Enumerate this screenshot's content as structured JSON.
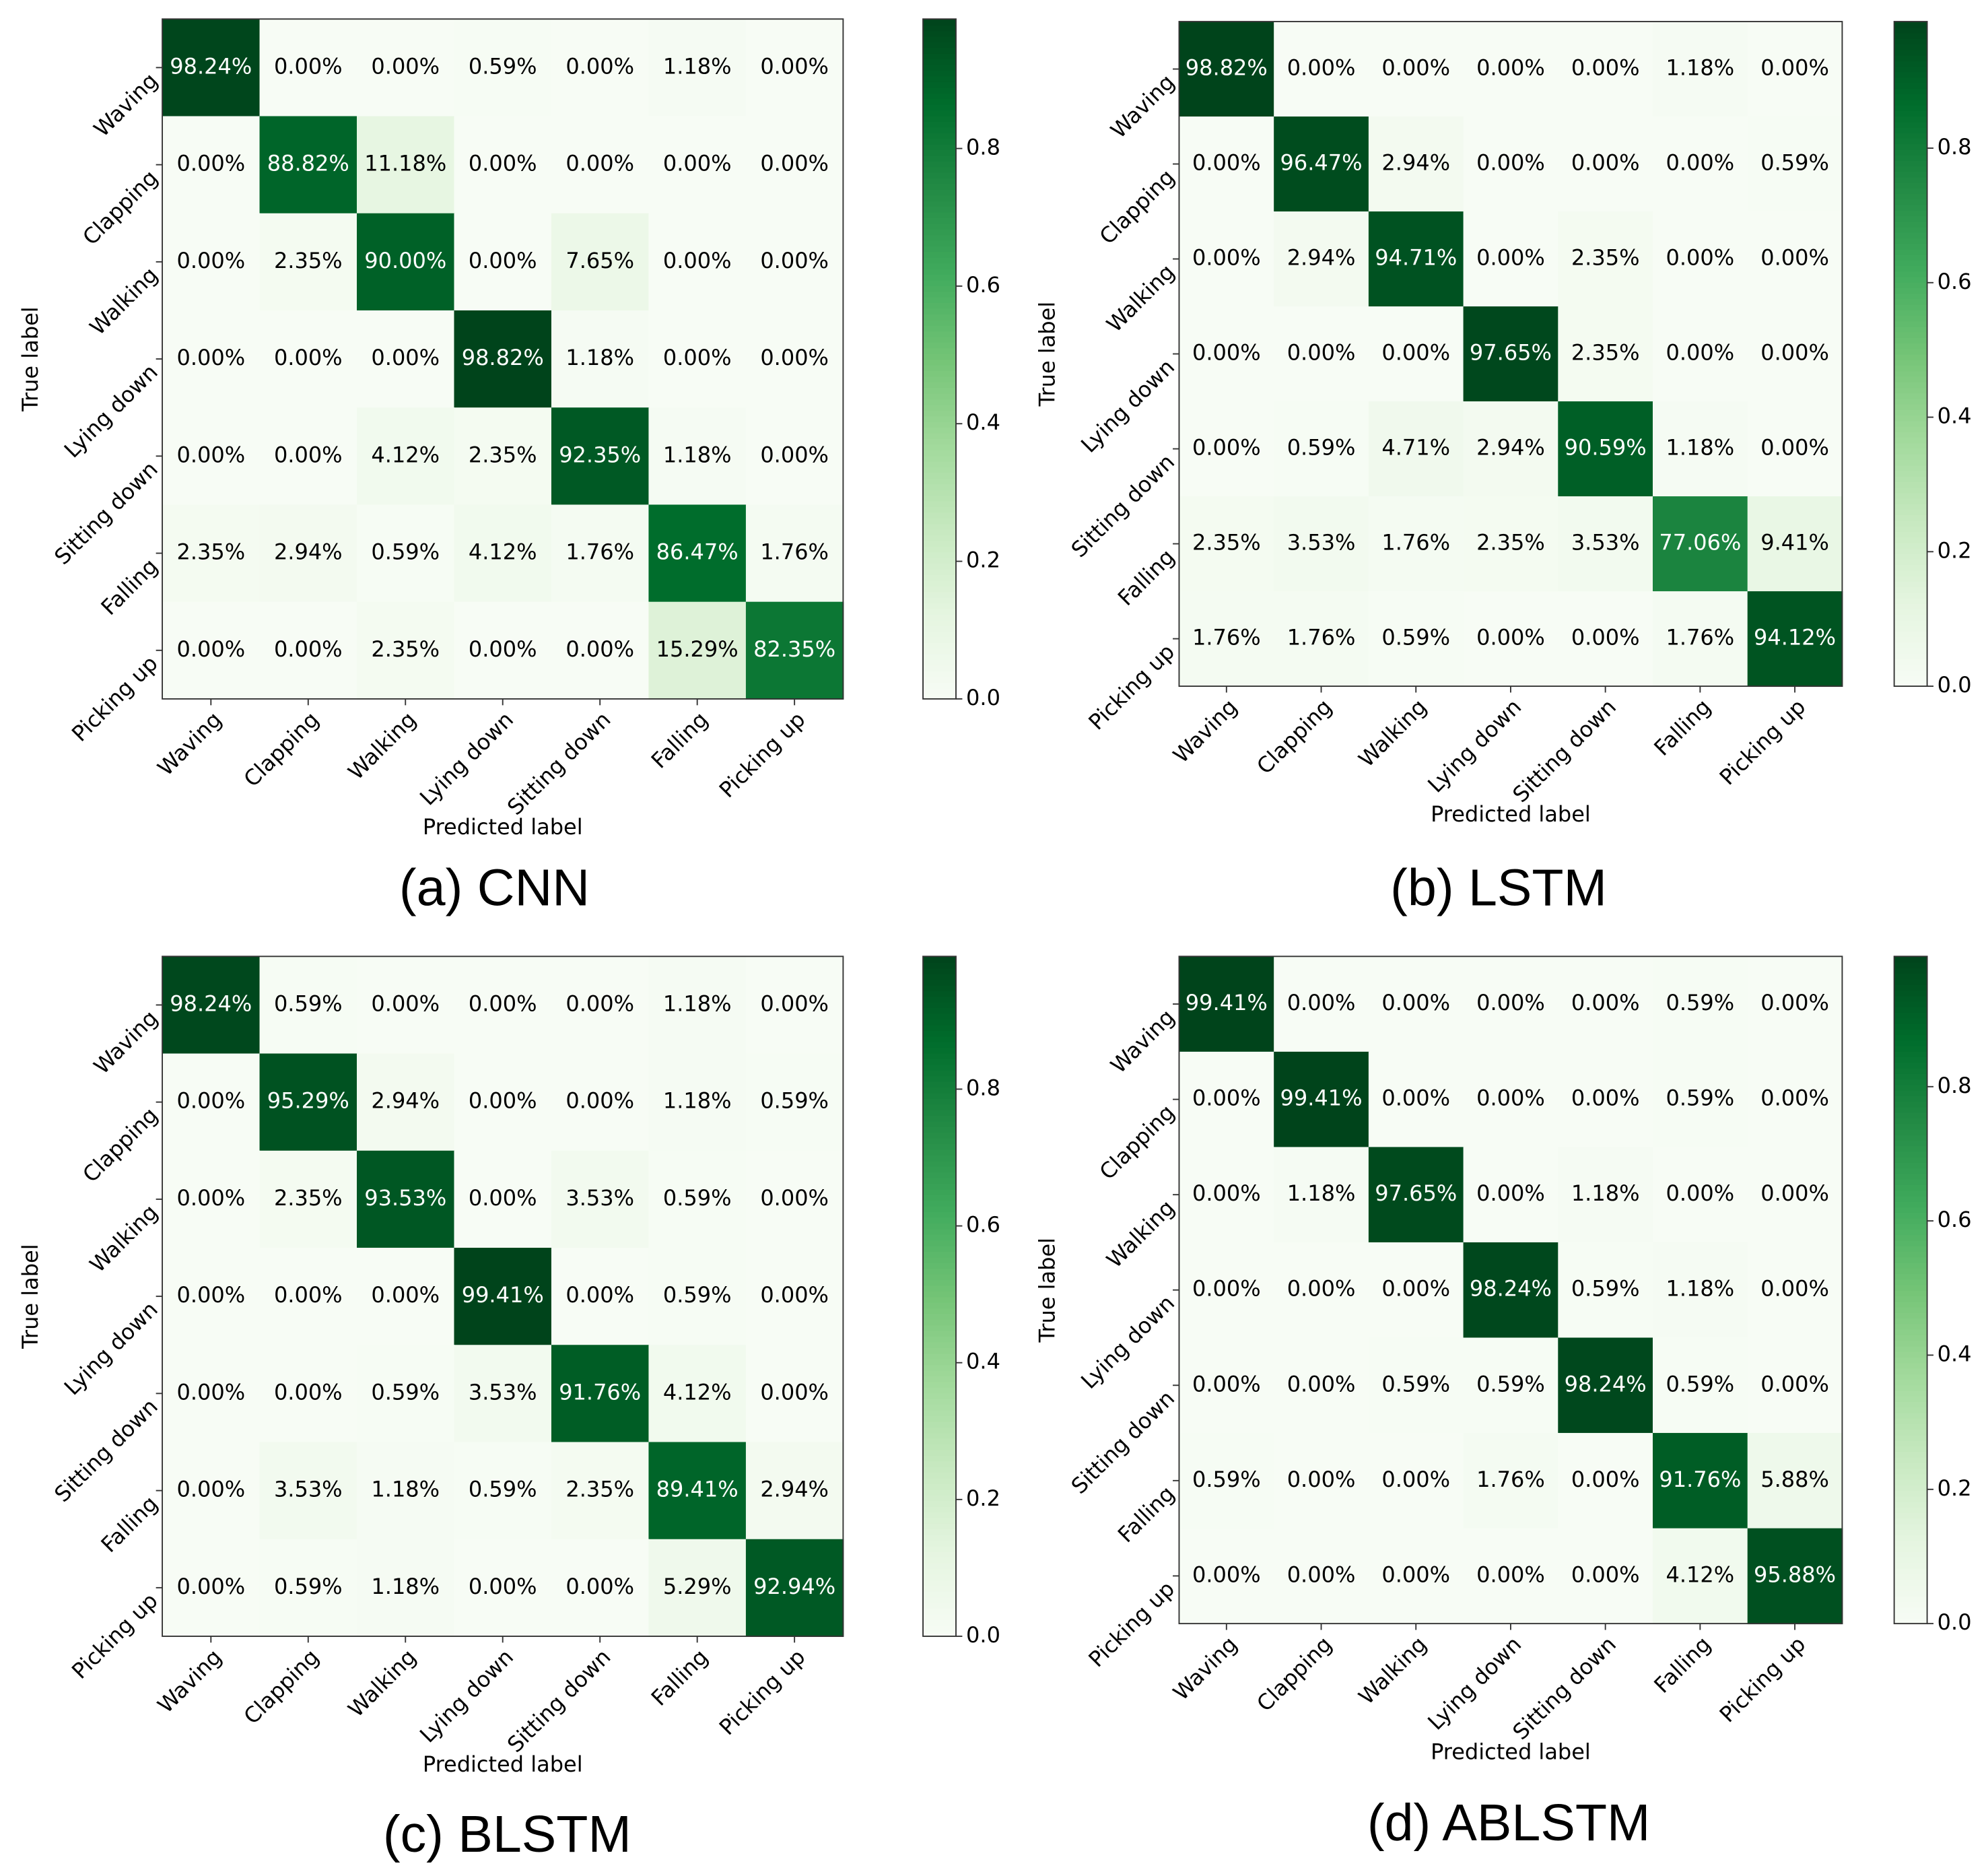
{
  "chart_data": [
    {
      "type": "heatmap",
      "title": "(a) CNN",
      "xlabel": "Predicted label",
      "ylabel": "True label",
      "xcategories": [
        "Waving",
        "Clapping",
        "Walking",
        "Lying down",
        "Sitting down",
        "Falling",
        "Picking up"
      ],
      "ycategories": [
        "Waving",
        "Clapping",
        "Walking",
        "Lying down",
        "Sitting down",
        "Falling",
        "Picking up"
      ],
      "values": [
        [
          0.9824,
          0,
          0,
          0.0059,
          0,
          0.0118,
          0
        ],
        [
          0,
          0.8882,
          0.1118,
          0,
          0,
          0,
          0
        ],
        [
          0,
          0.0235,
          0.9,
          0,
          0.0765,
          0,
          0
        ],
        [
          0,
          0,
          0,
          0.9882,
          0.0118,
          0,
          0
        ],
        [
          0,
          0,
          0.0412,
          0.0235,
          0.9235,
          0.0118,
          0
        ],
        [
          0.0235,
          0.0294,
          0.0059,
          0.0412,
          0.0176,
          0.8647,
          0.0176
        ],
        [
          0,
          0,
          0.0235,
          0,
          0,
          0.1529,
          0.8235
        ]
      ],
      "value_labels": [
        [
          "98.24%",
          "0.00%",
          "0.00%",
          "0.59%",
          "0.00%",
          "1.18%",
          "0.00%"
        ],
        [
          "0.00%",
          "88.82%",
          "11.18%",
          "0.00%",
          "0.00%",
          "0.00%",
          "0.00%"
        ],
        [
          "0.00%",
          "2.35%",
          "90.00%",
          "0.00%",
          "7.65%",
          "0.00%",
          "0.00%"
        ],
        [
          "0.00%",
          "0.00%",
          "0.00%",
          "98.82%",
          "1.18%",
          "0.00%",
          "0.00%"
        ],
        [
          "0.00%",
          "0.00%",
          "4.12%",
          "2.35%",
          "92.35%",
          "1.18%",
          "0.00%"
        ],
        [
          "2.35%",
          "2.94%",
          "0.59%",
          "4.12%",
          "1.76%",
          "86.47%",
          "1.76%"
        ],
        [
          "0.00%",
          "0.00%",
          "2.35%",
          "0.00%",
          "0.00%",
          "15.29%",
          "82.35%"
        ]
      ],
      "clim": [
        0,
        0.9882
      ],
      "cticks": [
        {
          "value": 0,
          "label": "0.0"
        },
        0.2,
        0.4,
        0.6,
        0.8
      ],
      "cmap": [
        "#f7fcf5",
        "#e5f5e0",
        "#c7e9c0",
        "#a1d99b",
        "#74c476",
        "#41ab5d",
        "#238b45",
        "#006d2c",
        "#00441b"
      ]
    },
    {
      "type": "heatmap",
      "title": "(b) LSTM",
      "xlabel": "Predicted label",
      "ylabel": "True label",
      "xcategories": [
        "Waving",
        "Clapping",
        "Walking",
        "Lying down",
        "Sitting down",
        "Falling",
        "Picking up"
      ],
      "ycategories": [
        "Waving",
        "Clapping",
        "Walking",
        "Lying down",
        "Sitting down",
        "Falling",
        "Picking up"
      ],
      "values": [
        [
          0.9882,
          0,
          0,
          0,
          0,
          0.0118,
          0
        ],
        [
          0,
          0.9647,
          0.0294,
          0,
          0,
          0,
          0.0059
        ],
        [
          0,
          0.0294,
          0.9471,
          0,
          0.0235,
          0,
          0
        ],
        [
          0,
          0,
          0,
          0.9765,
          0.0235,
          0,
          0
        ],
        [
          0,
          0.0059,
          0.0471,
          0.0294,
          0.9059,
          0.0118,
          0
        ],
        [
          0.0235,
          0.0353,
          0.0176,
          0.0235,
          0.0353,
          0.7706,
          0.0941
        ],
        [
          0.0176,
          0.0176,
          0.0059,
          0,
          0,
          0.0176,
          0.9412
        ]
      ],
      "value_labels": [
        [
          "98.82%",
          "0.00%",
          "0.00%",
          "0.00%",
          "0.00%",
          "1.18%",
          "0.00%"
        ],
        [
          "0.00%",
          "96.47%",
          "2.94%",
          "0.00%",
          "0.00%",
          "0.00%",
          "0.59%"
        ],
        [
          "0.00%",
          "2.94%",
          "94.71%",
          "0.00%",
          "2.35%",
          "0.00%",
          "0.00%"
        ],
        [
          "0.00%",
          "0.00%",
          "0.00%",
          "97.65%",
          "2.35%",
          "0.00%",
          "0.00%"
        ],
        [
          "0.00%",
          "0.59%",
          "4.71%",
          "2.94%",
          "90.59%",
          "1.18%",
          "0.00%"
        ],
        [
          "2.35%",
          "3.53%",
          "1.76%",
          "2.35%",
          "3.53%",
          "77.06%",
          "9.41%"
        ],
        [
          "1.76%",
          "1.76%",
          "0.59%",
          "0.00%",
          "0.00%",
          "1.76%",
          "94.12%"
        ]
      ],
      "clim": [
        0,
        0.9882
      ],
      "cticks": [
        {
          "value": 0,
          "label": "0.0"
        },
        0.2,
        0.4,
        0.6,
        0.8
      ],
      "cmap": [
        "#f7fcf5",
        "#e5f5e0",
        "#c7e9c0",
        "#a1d99b",
        "#74c476",
        "#41ab5d",
        "#238b45",
        "#006d2c",
        "#00441b"
      ]
    },
    {
      "type": "heatmap",
      "title": "(c) BLSTM",
      "xlabel": "Predicted label",
      "ylabel": "True label",
      "xcategories": [
        "Waving",
        "Clapping",
        "Walking",
        "Lying down",
        "Sitting down",
        "Falling",
        "Picking up"
      ],
      "ycategories": [
        "Waving",
        "Clapping",
        "Walking",
        "Lying down",
        "Sitting down",
        "Falling",
        "Picking up"
      ],
      "values": [
        [
          0.9824,
          0.0059,
          0,
          0,
          0,
          0.0118,
          0
        ],
        [
          0,
          0.9529,
          0.0294,
          0,
          0,
          0.0118,
          0.0059
        ],
        [
          0,
          0.0235,
          0.9353,
          0,
          0.0353,
          0.0059,
          0
        ],
        [
          0,
          0,
          0,
          0.9941,
          0,
          0.0059,
          0
        ],
        [
          0,
          0,
          0.0059,
          0.0353,
          0.9176,
          0.0412,
          0
        ],
        [
          0,
          0.0353,
          0.0118,
          0.0059,
          0.0235,
          0.8941,
          0.0294
        ],
        [
          0,
          0.0059,
          0.0118,
          0,
          0,
          0.0529,
          0.9294
        ]
      ],
      "value_labels": [
        [
          "98.24%",
          "0.59%",
          "0.00%",
          "0.00%",
          "0.00%",
          "1.18%",
          "0.00%"
        ],
        [
          "0.00%",
          "95.29%",
          "2.94%",
          "0.00%",
          "0.00%",
          "1.18%",
          "0.59%"
        ],
        [
          "0.00%",
          "2.35%",
          "93.53%",
          "0.00%",
          "3.53%",
          "0.59%",
          "0.00%"
        ],
        [
          "0.00%",
          "0.00%",
          "0.00%",
          "99.41%",
          "0.00%",
          "0.59%",
          "0.00%"
        ],
        [
          "0.00%",
          "0.00%",
          "0.59%",
          "3.53%",
          "91.76%",
          "4.12%",
          "0.00%"
        ],
        [
          "0.00%",
          "3.53%",
          "1.18%",
          "0.59%",
          "2.35%",
          "89.41%",
          "2.94%"
        ],
        [
          "0.00%",
          "0.59%",
          "1.18%",
          "0.00%",
          "0.00%",
          "5.29%",
          "92.94%"
        ]
      ],
      "clim": [
        0,
        0.9941
      ],
      "cticks": [
        {
          "value": 0,
          "label": "0.0"
        },
        0.2,
        0.4,
        0.6,
        0.8
      ],
      "cmap": [
        "#f7fcf5",
        "#e5f5e0",
        "#c7e9c0",
        "#a1d99b",
        "#74c476",
        "#41ab5d",
        "#238b45",
        "#006d2c",
        "#00441b"
      ]
    },
    {
      "type": "heatmap",
      "title": "(d) ABLSTM",
      "xlabel": "Predicted label",
      "ylabel": "True label",
      "xcategories": [
        "Waving",
        "Clapping",
        "Walking",
        "Lying down",
        "Sitting down",
        "Falling",
        "Picking up"
      ],
      "ycategories": [
        "Waving",
        "Clapping",
        "Walking",
        "Lying down",
        "Sitting down",
        "Falling",
        "Picking up"
      ],
      "values": [
        [
          0.9941,
          0,
          0,
          0,
          0,
          0.0059,
          0
        ],
        [
          0,
          0.9941,
          0,
          0,
          0,
          0.0059,
          0
        ],
        [
          0,
          0.0118,
          0.9765,
          0,
          0.0118,
          0,
          0
        ],
        [
          0,
          0,
          0,
          0.9824,
          0.0059,
          0.0118,
          0
        ],
        [
          0,
          0,
          0.0059,
          0.0059,
          0.9824,
          0.0059,
          0
        ],
        [
          0.0059,
          0,
          0,
          0.0176,
          0,
          0.9176,
          0.0588
        ],
        [
          0,
          0,
          0,
          0,
          0,
          0.0412,
          0.9588
        ]
      ],
      "value_labels": [
        [
          "99.41%",
          "0.00%",
          "0.00%",
          "0.00%",
          "0.00%",
          "0.59%",
          "0.00%"
        ],
        [
          "0.00%",
          "99.41%",
          "0.00%",
          "0.00%",
          "0.00%",
          "0.59%",
          "0.00%"
        ],
        [
          "0.00%",
          "1.18%",
          "97.65%",
          "0.00%",
          "1.18%",
          "0.00%",
          "0.00%"
        ],
        [
          "0.00%",
          "0.00%",
          "0.00%",
          "98.24%",
          "0.59%",
          "1.18%",
          "0.00%"
        ],
        [
          "0.00%",
          "0.00%",
          "0.59%",
          "0.59%",
          "98.24%",
          "0.59%",
          "0.00%"
        ],
        [
          "0.59%",
          "0.00%",
          "0.00%",
          "1.76%",
          "0.00%",
          "91.76%",
          "5.88%"
        ],
        [
          "0.00%",
          "0.00%",
          "0.00%",
          "0.00%",
          "0.00%",
          "4.12%",
          "95.88%"
        ]
      ],
      "clim": [
        0,
        0.9941
      ],
      "cticks": [
        {
          "value": 0,
          "label": "0.0"
        },
        0.2,
        0.4,
        0.6,
        0.8
      ],
      "cmap": [
        "#f7fcf5",
        "#e5f5e0",
        "#c7e9c0",
        "#a1d99b",
        "#74c476",
        "#41ab5d",
        "#238b45",
        "#006d2c",
        "#00441b"
      ]
    }
  ]
}
